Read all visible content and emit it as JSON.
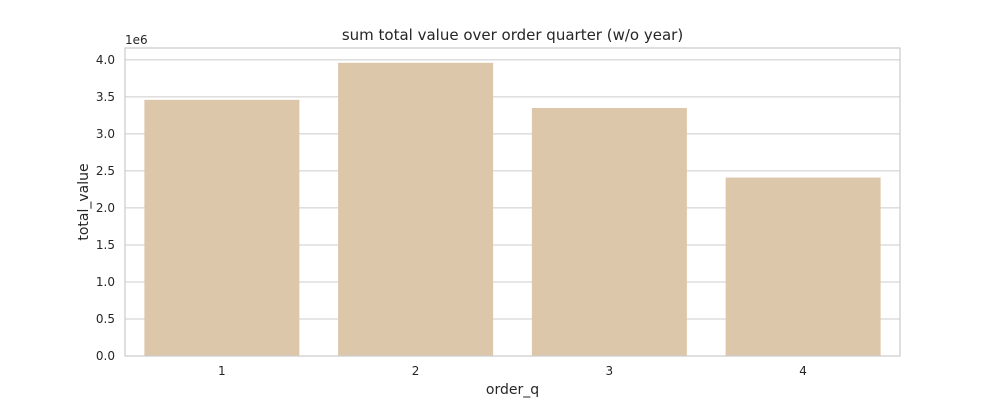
{
  "chart_data": {
    "type": "bar",
    "title": "sum total value over order quarter (w/o year)",
    "xlabel": "order_q",
    "ylabel": "total_value",
    "y_offset_label": "1e6",
    "categories": [
      "1",
      "2",
      "3",
      "4"
    ],
    "values": [
      3460000,
      3960000,
      3350000,
      2410000
    ],
    "ylim": [
      0,
      4160000
    ],
    "yticks": [
      0,
      500000,
      1000000,
      1500000,
      2000000,
      2500000,
      3000000,
      3500000,
      4000000
    ],
    "ytick_labels": [
      "0.0",
      "0.5",
      "1.0",
      "1.5",
      "2.0",
      "2.5",
      "3.0",
      "3.5",
      "4.0"
    ],
    "grid": true,
    "legend": "none",
    "colors": {
      "bar": "#dcc7aa",
      "grid": "#cccccc",
      "frame": "#cccccc",
      "background": "#ffffff",
      "text": "#262626"
    }
  }
}
